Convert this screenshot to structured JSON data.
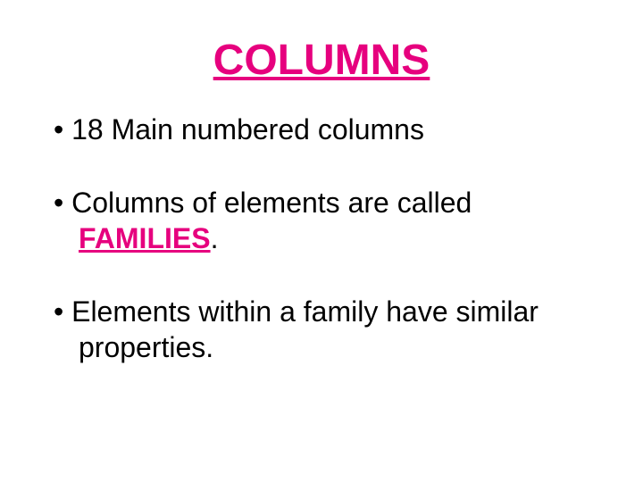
{
  "colors": {
    "accent": "#e6007e",
    "text": "#000000",
    "background": "#ffffff"
  },
  "typography": {
    "font_family": "Comic Sans MS",
    "title_fontsize": 48,
    "body_fontsize": 32
  },
  "title": "COLUMNS",
  "bullets": [
    {
      "before": "18 Main numbered columns",
      "keyword": "",
      "after": ""
    },
    {
      "before": "Columns of elements are called ",
      "keyword": "FAMILIES",
      "after": "."
    },
    {
      "before": "Elements within a family have similar properties.",
      "keyword": "",
      "after": ""
    }
  ]
}
